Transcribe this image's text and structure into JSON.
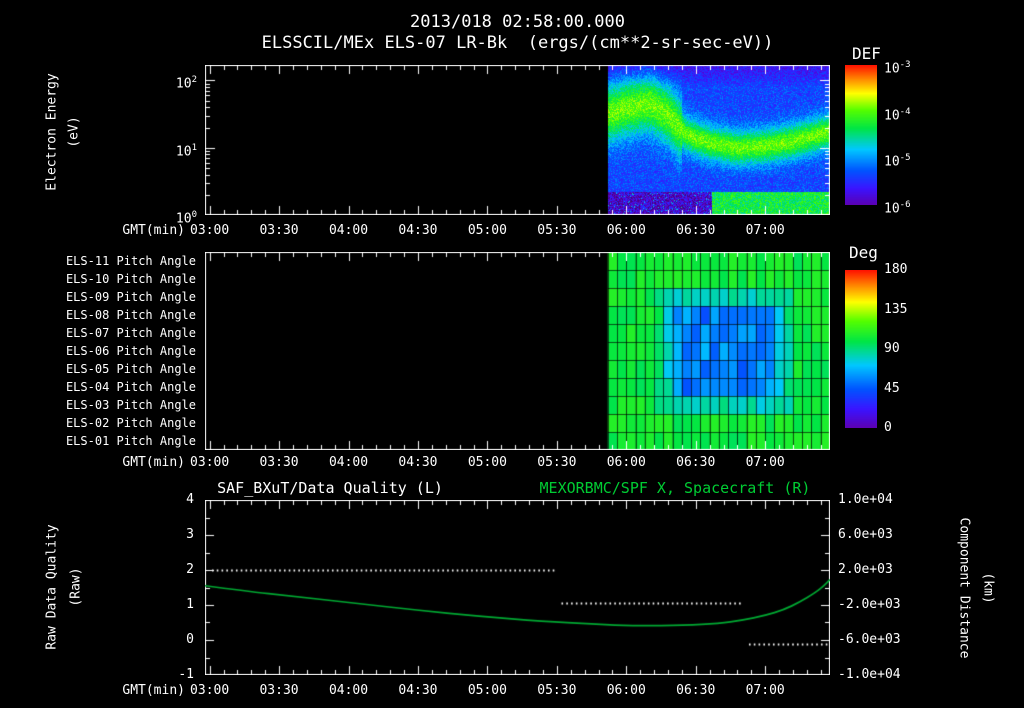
{
  "header": {
    "timestamp": "2013/018 02:58:00.000",
    "title": "ELSSCIL/MEx ELS-07 LR-Bk  (ergs/(cm**2-sr-sec-eV))"
  },
  "time_axis": {
    "label": "GMT(min)",
    "ticks": [
      "03:00",
      "03:30",
      "04:00",
      "04:30",
      "05:00",
      "05:30",
      "06:00",
      "06:30",
      "07:00"
    ],
    "tick_minutes": [
      180,
      210,
      240,
      270,
      300,
      330,
      360,
      390,
      420
    ],
    "range_minutes": [
      178,
      448
    ]
  },
  "spectrogram": {
    "ylabel_line1": "Electron Energy",
    "ylabel_line2": "(eV)",
    "ytick_exponents": [
      2,
      1,
      0
    ],
    "colorbar": {
      "label": "DEF",
      "tick_exponents": [
        -3,
        -4,
        -5,
        -6
      ]
    }
  },
  "pitch_panel": {
    "row_labels": [
      "ELS-11 Pitch Angle",
      "ELS-10 Pitch Angle",
      "ELS-09 Pitch Angle",
      "ELS-08 Pitch Angle",
      "ELS-07 Pitch Angle",
      "ELS-06 Pitch Angle",
      "ELS-05 Pitch Angle",
      "ELS-04 Pitch Angle",
      "ELS-03 Pitch Angle",
      "ELS-02 Pitch Angle",
      "ELS-01 Pitch Angle"
    ],
    "colorbar": {
      "label": "Deg",
      "ticks": [
        "180",
        "135",
        "90",
        "45",
        "0"
      ]
    }
  },
  "line_panel": {
    "left_title": "SAF_BXuT/Data Quality (L)",
    "right_title": "MEXORBMC/SPF X, Spacecraft (R)",
    "left_ylabel_line1": "Raw Data Quality",
    "left_ylabel_line2": "(Raw)",
    "right_ylabel_line1": "Component Distance",
    "right_ylabel_line2": "(km)",
    "left_ticks": [
      "4",
      "3",
      "2",
      "1",
      "0",
      "-1"
    ],
    "right_ticks": [
      "1.0e+04",
      "6.0e+03",
      "2.0e+03",
      "-2.0e+03",
      "-6.0e+03",
      "-1.0e+04"
    ]
  },
  "colors": {
    "background": "#000000",
    "text": "#ffffff",
    "title_green": "#00cc33",
    "curve_green": "#00a832",
    "rainbow_stops": [
      [
        0,
        "#5e00b0"
      ],
      [
        0.12,
        "#3c14ff"
      ],
      [
        0.25,
        "#0055ff"
      ],
      [
        0.4,
        "#00c8ff"
      ],
      [
        0.55,
        "#00e646"
      ],
      [
        0.68,
        "#55ff00"
      ],
      [
        0.8,
        "#ffff00"
      ],
      [
        0.9,
        "#ff8c00"
      ],
      [
        1,
        "#ff1400"
      ]
    ]
  },
  "chart_data": [
    {
      "type": "heatmap",
      "name": "electron_energy_spectrogram",
      "ylabel": "Electron Energy (eV)",
      "yscale": "log",
      "ylim_ev": [
        1,
        170
      ],
      "x_range_minutes": [
        178,
        448
      ],
      "data_start_minute": 352,
      "value_units": "ergs/(cm**2-sr-sec-eV)",
      "value_exp_range": [
        -6,
        -3
      ],
      "background_value_exp": -5.35,
      "band_value_exp": -3.95,
      "band_path_minute_logev": [
        [
          352,
          1.5
        ],
        [
          360,
          1.6
        ],
        [
          370,
          1.66
        ],
        [
          378,
          1.5
        ],
        [
          386,
          1.2
        ],
        [
          396,
          1.08
        ],
        [
          408,
          1.0
        ],
        [
          420,
          1.03
        ],
        [
          432,
          1.1
        ],
        [
          448,
          1.25
        ]
      ],
      "band_sigma_decades": [
        0.3,
        0.18
      ],
      "band_sigma_switch_minute": 384,
      "low_energy_dark_below_logev": 0.35,
      "low_band": {
        "after_minute": 397,
        "value_exp": -4.3
      }
    },
    {
      "type": "heatmap",
      "name": "pitch_angle_grid",
      "rows": 11,
      "x_range_minutes": [
        178,
        448
      ],
      "data_start_minute": 352,
      "cell_minutes": 4,
      "value_units": "deg",
      "value_range": [
        0,
        180
      ],
      "base_deg": 103,
      "cool_patch": {
        "center_minute": 403,
        "center_row_index": 5,
        "min_deg": 55,
        "minute_halfwidth": 26,
        "row_halfwidth": 3
      }
    },
    {
      "type": "line",
      "name": "quality_and_spacecraft_x",
      "left_series": {
        "label": "SAF_BXuT/Data Quality (L)",
        "style": "dotted",
        "color": "#ffffff",
        "ylim": [
          -1,
          4
        ],
        "segments": [
          {
            "t_minutes": [
              181,
              329
            ],
            "value": 2.0
          },
          {
            "t_minutes": [
              332,
              410
            ],
            "value": 1.05
          },
          {
            "t_minutes": [
              413,
              448
            ],
            "value": -0.1
          }
        ]
      },
      "right_series": {
        "label": "MEXORBMC/SPF X, Spacecraft (R)",
        "color": "#00a832",
        "ylim_km": [
          -10000,
          10000
        ],
        "points_minute_km": [
          [
            178,
            200
          ],
          [
            195,
            -400
          ],
          [
            216,
            -1000
          ],
          [
            243,
            -1800
          ],
          [
            270,
            -2600
          ],
          [
            297,
            -3300
          ],
          [
            324,
            -3850
          ],
          [
            345,
            -4200
          ],
          [
            365,
            -4380
          ],
          [
            385,
            -4330
          ],
          [
            400,
            -4100
          ],
          [
            410,
            -3750
          ],
          [
            420,
            -3200
          ],
          [
            428,
            -2550
          ],
          [
            435,
            -1650
          ],
          [
            441,
            -700
          ],
          [
            445,
            100
          ],
          [
            448,
            900
          ]
        ]
      }
    }
  ]
}
